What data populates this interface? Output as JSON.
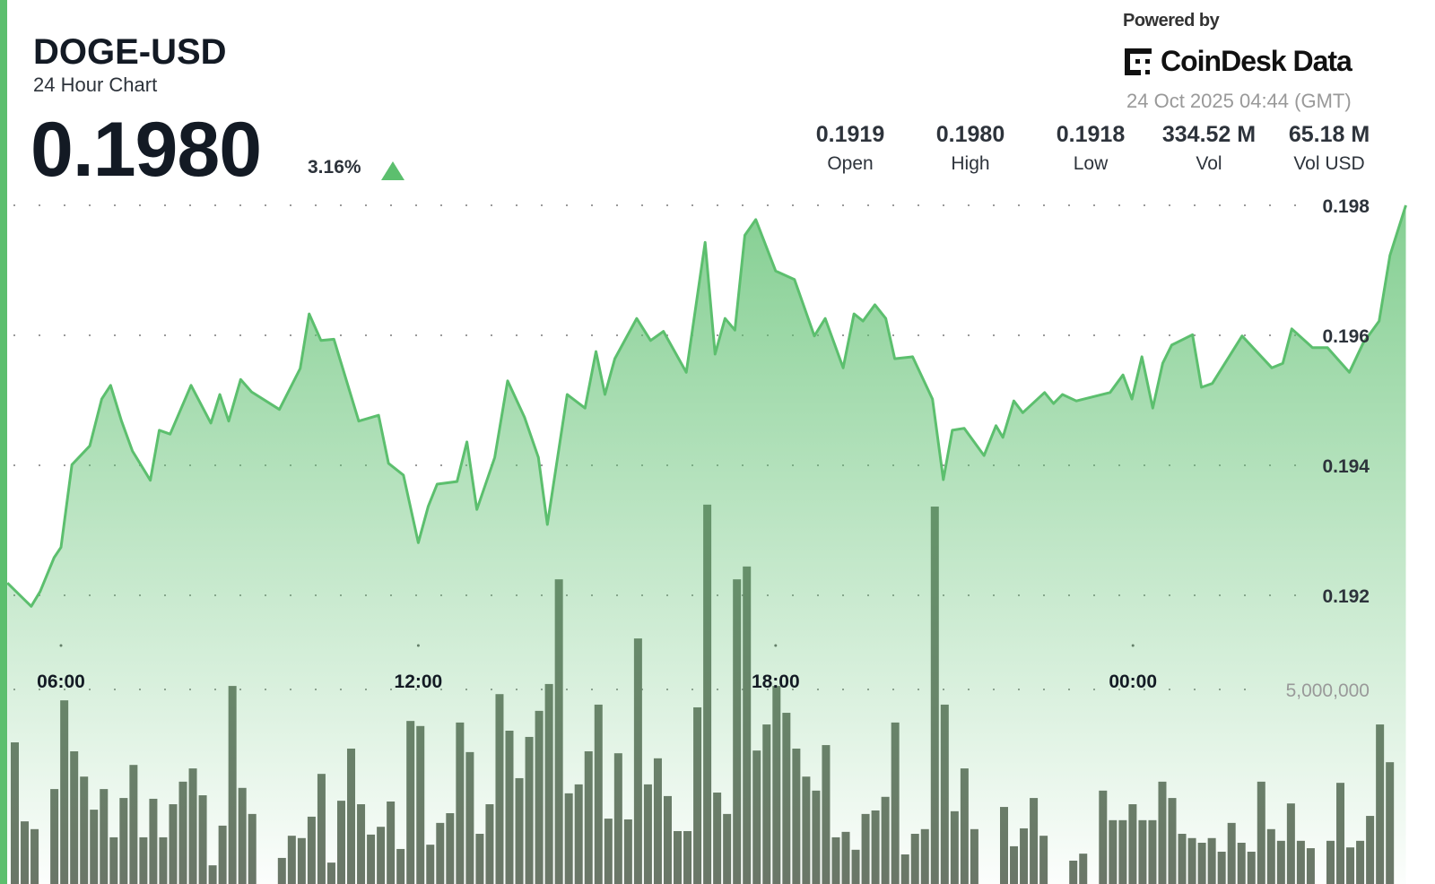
{
  "header": {
    "ticker": "DOGE-USD",
    "subtitle": "24 Hour Chart",
    "price": "0.1980",
    "change": "3.16%",
    "change_direction": "up"
  },
  "branding": {
    "powered_by": "Powered by",
    "logo_text": "CoinDesk Data",
    "timestamp": "24 Oct 2025 04:44 (GMT)"
  },
  "stats": [
    {
      "value": "0.1919",
      "label": "Open"
    },
    {
      "value": "0.1980",
      "label": "High"
    },
    {
      "value": "0.1918",
      "label": "Low"
    },
    {
      "value": "334.52 M",
      "label": "Vol"
    },
    {
      "value": "65.18 M",
      "label": "Vol USD"
    }
  ],
  "colors": {
    "accent": "#5cbf6e",
    "line": "#5cbf6e",
    "volume_bar": "#6b7568",
    "text": "#131a24"
  },
  "chart_data": {
    "type": "line",
    "grid": true,
    "price_ticks": [
      "0.198",
      "0.196",
      "0.194",
      "0.192"
    ],
    "price_tick_values": [
      0.198,
      0.196,
      0.194,
      0.192
    ],
    "time_ticks": [
      "06:00",
      "12:00",
      "18:00",
      "00:00"
    ],
    "volume_tick": "5,000,000",
    "volume_tick_value": 5000000,
    "price_series": {
      "x": [
        "05:06",
        "05:30",
        "05:39",
        "05:53",
        "06:00",
        "06:11",
        "06:29",
        "06:41",
        "06:50",
        "07:01",
        "07:12",
        "07:30",
        "07:39",
        "07:50",
        "08:11",
        "08:31",
        "08:40",
        "08:49",
        "09:01",
        "09:12",
        "09:40",
        "10:01",
        "10:10",
        "10:22",
        "10:35",
        "11:00",
        "11:20",
        "11:30",
        "11:45",
        "12:00",
        "12:10",
        "12:19",
        "12:39",
        "12:49",
        "12:59",
        "13:17",
        "13:30",
        "13:47",
        "14:01",
        "14:10",
        "14:30",
        "14:48",
        "14:59",
        "15:08",
        "15:18",
        "15:40",
        "15:54",
        "16:07",
        "16:30",
        "16:49",
        "16:59",
        "17:09",
        "17:19",
        "17:29",
        "17:40",
        "18:00",
        "18:19",
        "18:39",
        "18:50",
        "19:08",
        "19:19",
        "19:28",
        "19:40",
        "19:51",
        "20:00",
        "20:18",
        "20:38",
        "20:49",
        "20:58",
        "21:10",
        "21:30",
        "21:42",
        "21:49",
        "22:00",
        "22:09",
        "22:31",
        "22:40",
        "22:49",
        "23:03",
        "23:37",
        "23:50",
        "23:59",
        "00:09",
        "00:20",
        "00:30",
        "00:39",
        "01:00",
        "01:09",
        "01:20",
        "01:50",
        "02:20",
        "02:31",
        "02:40",
        "03:01",
        "03:16",
        "03:38",
        "03:52",
        "04:08",
        "04:19",
        "04:35"
      ],
      "y": [
        0.19219,
        0.19183,
        0.19206,
        0.19258,
        0.19274,
        0.19401,
        0.1943,
        0.19502,
        0.19523,
        0.19468,
        0.19422,
        0.19377,
        0.19454,
        0.19448,
        0.19523,
        0.19465,
        0.19509,
        0.19468,
        0.19532,
        0.19513,
        0.19486,
        0.19549,
        0.19633,
        0.19592,
        0.19594,
        0.19468,
        0.19477,
        0.19403,
        0.19385,
        0.19281,
        0.19337,
        0.19371,
        0.19375,
        0.19436,
        0.19332,
        0.19412,
        0.1953,
        0.19474,
        0.19412,
        0.19309,
        0.19509,
        0.19488,
        0.19575,
        0.19509,
        0.19564,
        0.19626,
        0.19592,
        0.19606,
        0.19543,
        0.19743,
        0.19571,
        0.19626,
        0.19608,
        0.19754,
        0.19778,
        0.19699,
        0.19686,
        0.19599,
        0.19626,
        0.1955,
        0.19633,
        0.19622,
        0.19647,
        0.19626,
        0.19564,
        0.19567,
        0.19502,
        0.19378,
        0.19454,
        0.19457,
        0.19415,
        0.19461,
        0.19443,
        0.19499,
        0.19481,
        0.19512,
        0.19495,
        0.19509,
        0.19499,
        0.19512,
        0.19539,
        0.19502,
        0.19567,
        0.19488,
        0.19557,
        0.19585,
        0.19601,
        0.1952,
        0.19526,
        0.19599,
        0.1955,
        0.19557,
        0.1961,
        0.19581,
        0.19581,
        0.19543,
        0.19588,
        0.19622,
        0.19723,
        0.198
      ]
    },
    "volume_series": {
      "interval": "10 min",
      "values": [
        3640000,
        1610000,
        1410000,
        0,
        2440000,
        4720000,
        3410000,
        2760000,
        1910000,
        2440000,
        1200000,
        2210000,
        3060000,
        1200000,
        2190000,
        1200000,
        2050000,
        2630000,
        2970000,
        2280000,
        480000,
        1500000,
        5090000,
        2470000,
        1800000,
        0,
        0,
        670000,
        1240000,
        1180000,
        1730000,
        2830000,
        550000,
        2140000,
        3480000,
        2050000,
        1270000,
        1470000,
        2120000,
        900000,
        4190000,
        4060000,
        1010000,
        1570000,
        1820000,
        4150000,
        3390000,
        1290000,
        2050000,
        4880000,
        3940000,
        2720000,
        3780000,
        4450000,
        5140000,
        7830000,
        2330000,
        2560000,
        3410000,
        4610000,
        1680000,
        3360000,
        1660000,
        6310000,
        2560000,
        3230000,
        2260000,
        1360000,
        1360000,
        4540000,
        9750000,
        2350000,
        1800000,
        7830000,
        8160000,
        3430000,
        4100000,
        5090000,
        4400000,
        3480000,
        2760000,
        2400000,
        3570000,
        1200000,
        1340000,
        880000,
        1800000,
        1890000,
        2240000,
        4150000,
        760000,
        1290000,
        1410000,
        9700000,
        4610000,
        1870000,
        2970000,
        1410000,
        0,
        0,
        1980000,
        970000,
        1430000,
        2210000,
        1240000,
        0,
        0,
        600000,
        780000,
        0,
        2400000,
        1640000,
        1640000,
        2050000,
        1640000,
        1640000,
        2630000,
        2210000,
        1290000,
        1180000,
        1060000,
        1180000,
        830000,
        1570000,
        1060000,
        830000,
        2630000,
        1410000,
        1110000,
        2070000,
        1110000,
        920000,
        0,
        1110000,
        2600000,
        940000,
        1110000,
        1750000,
        4100000,
        3130000
      ]
    }
  }
}
